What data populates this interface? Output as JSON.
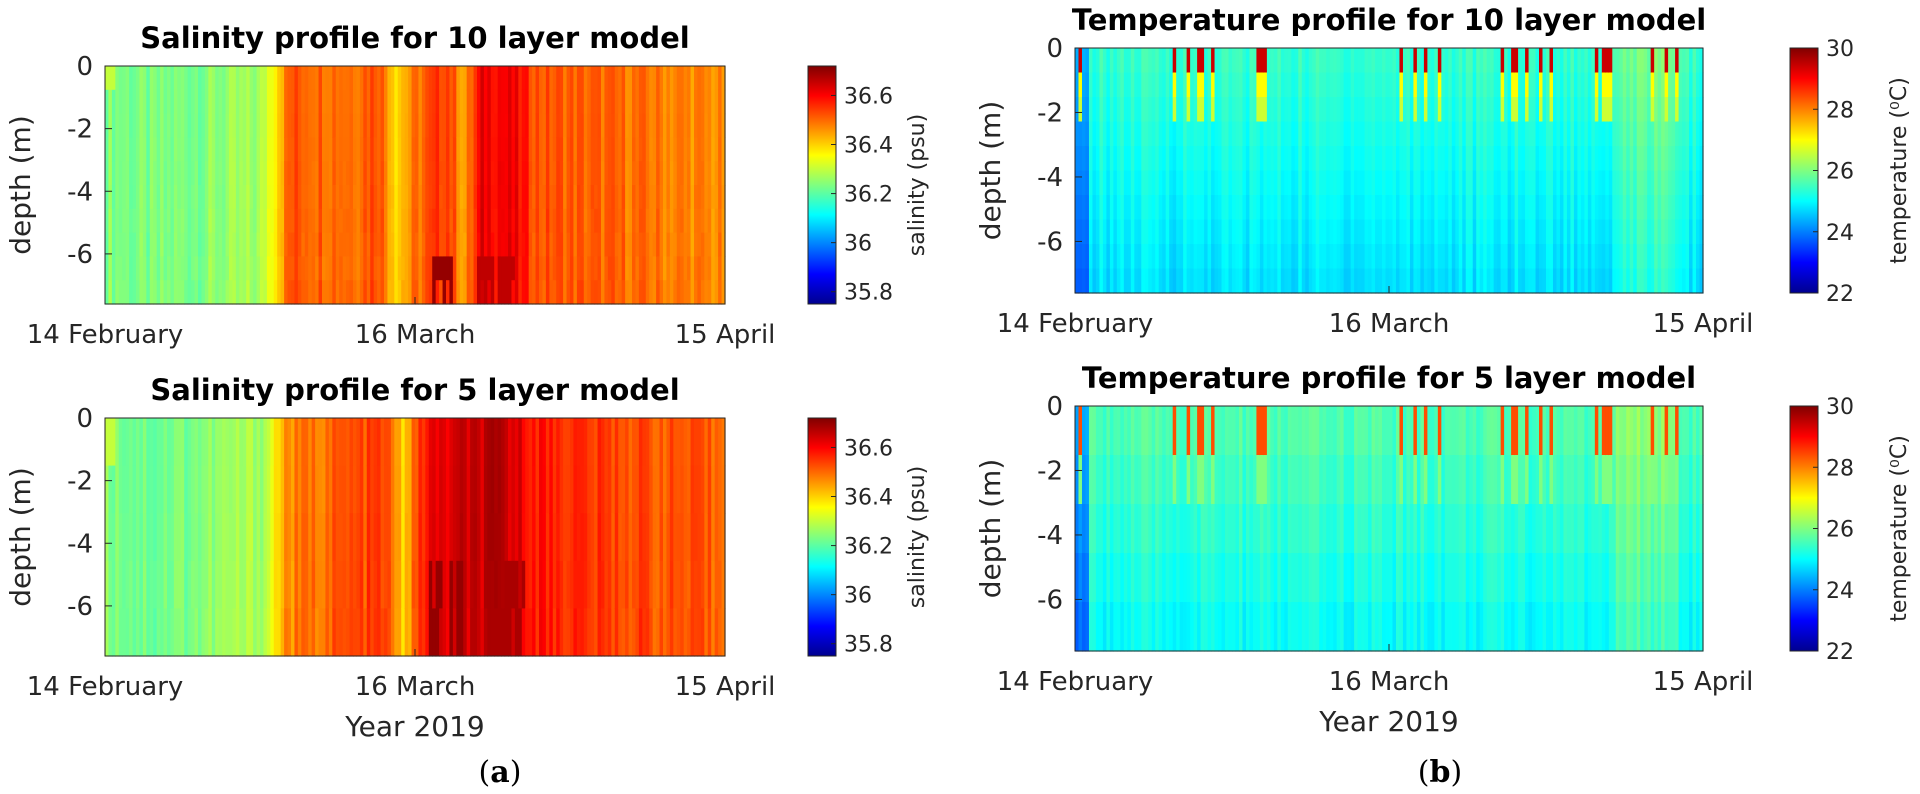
{
  "figure": {
    "year_label": "Year 2019"
  },
  "panel_labels": {
    "a": "a",
    "b": "b"
  },
  "colors": {
    "axis": "#262626",
    "title": "#000000"
  },
  "chart_data": [
    {
      "type": "heatmap",
      "id": "sal10",
      "title": "Salinity profile for 10 layer model",
      "xlabel": "",
      "ylabel": "depth (m)",
      "x_ticks": [
        "14 February",
        "16 March",
        "15 April"
      ],
      "y_ticks": [
        "0",
        "-2",
        "-4",
        "-6"
      ],
      "ylim": [
        -7.6,
        0
      ],
      "layers": 10,
      "colorbar": {
        "label": "salinity (psu)",
        "range": [
          35.75,
          36.72
        ],
        "ticks": [
          "36.6",
          "36.4",
          "36.2",
          "36",
          "35.8"
        ],
        "tick_values": [
          36.6,
          36.4,
          36.2,
          36.0,
          35.8
        ]
      },
      "surface_profile": [
        {
          "x": 0.0,
          "v": 36.24
        },
        {
          "x": 0.08,
          "v": 36.22
        },
        {
          "x": 0.16,
          "v": 36.24
        },
        {
          "x": 0.25,
          "v": 36.26
        },
        {
          "x": 0.28,
          "v": 36.42
        },
        {
          "x": 0.3,
          "v": 36.52
        },
        {
          "x": 0.4,
          "v": 36.5
        },
        {
          "x": 0.44,
          "v": 36.54
        },
        {
          "x": 0.47,
          "v": 36.4
        },
        {
          "x": 0.5,
          "v": 36.48
        },
        {
          "x": 0.55,
          "v": 36.56
        },
        {
          "x": 0.58,
          "v": 36.44
        },
        {
          "x": 0.61,
          "v": 36.62
        },
        {
          "x": 0.66,
          "v": 36.6
        },
        {
          "x": 0.7,
          "v": 36.52
        },
        {
          "x": 0.8,
          "v": 36.5
        },
        {
          "x": 0.9,
          "v": 36.48
        },
        {
          "x": 1.0,
          "v": 36.46
        }
      ],
      "deep_anomaly": [
        {
          "x0": 0.53,
          "x1": 0.56,
          "v": 36.7
        },
        {
          "x0": 0.6,
          "x1": 0.66,
          "v": 36.66
        }
      ]
    },
    {
      "type": "heatmap",
      "id": "sal5",
      "title": "Salinity profile for 5 layer model",
      "xlabel": "Year 2019",
      "ylabel": "depth (m)",
      "x_ticks": [
        "14 February",
        "16 March",
        "15 April"
      ],
      "y_ticks": [
        "0",
        "-2",
        "-4",
        "-6"
      ],
      "ylim": [
        -7.6,
        0
      ],
      "layers": 5,
      "colorbar": {
        "label": "salinity (psu)",
        "range": [
          35.75,
          36.72
        ],
        "ticks": [
          "36.6",
          "36.4",
          "36.2",
          "36",
          "35.8"
        ],
        "tick_values": [
          36.6,
          36.4,
          36.2,
          36.0,
          35.8
        ]
      },
      "surface_profile": [
        {
          "x": 0.0,
          "v": 36.24
        },
        {
          "x": 0.08,
          "v": 36.22
        },
        {
          "x": 0.16,
          "v": 36.24
        },
        {
          "x": 0.26,
          "v": 36.28
        },
        {
          "x": 0.29,
          "v": 36.46
        },
        {
          "x": 0.36,
          "v": 36.5
        },
        {
          "x": 0.45,
          "v": 36.54
        },
        {
          "x": 0.48,
          "v": 36.4
        },
        {
          "x": 0.52,
          "v": 36.6
        },
        {
          "x": 0.58,
          "v": 36.64
        },
        {
          "x": 0.64,
          "v": 36.66
        },
        {
          "x": 0.7,
          "v": 36.58
        },
        {
          "x": 0.8,
          "v": 36.54
        },
        {
          "x": 0.9,
          "v": 36.52
        },
        {
          "x": 1.0,
          "v": 36.5
        }
      ],
      "deep_anomaly": [
        {
          "x0": 0.52,
          "x1": 0.58,
          "v": 36.7
        },
        {
          "x0": 0.62,
          "x1": 0.68,
          "v": 36.68
        }
      ]
    },
    {
      "type": "heatmap",
      "id": "temp10",
      "title": "Temperature profile for 10 layer model",
      "xlabel": "",
      "ylabel": "depth (m)",
      "x_ticks": [
        "14 February",
        "16 March",
        "15 April"
      ],
      "y_ticks": [
        "0",
        "-2",
        "-4",
        "-6"
      ],
      "ylim": [
        -7.6,
        0
      ],
      "layers": 10,
      "colorbar": {
        "label": "temperature (⁰C)",
        "range": [
          22,
          30
        ],
        "ticks": [
          "30",
          "28",
          "26",
          "24",
          "22"
        ],
        "tick_values": [
          30,
          28,
          26,
          24,
          22
        ]
      },
      "base_value": 25.4,
      "spikes": [
        0.01,
        0.16,
        0.18,
        0.2,
        0.22,
        0.29,
        0.3,
        0.52,
        0.54,
        0.56,
        0.58,
        0.68,
        0.7,
        0.72,
        0.74,
        0.76,
        0.83,
        0.84,
        0.85,
        0.92,
        0.94,
        0.96
      ],
      "spike_value": 29.4
    },
    {
      "type": "heatmap",
      "id": "temp5",
      "title": "Temperature profile for 5 layer model",
      "xlabel": "Year 2019",
      "ylabel": "depth (m)",
      "x_ticks": [
        "14 February",
        "16 March",
        "15 April"
      ],
      "y_ticks": [
        "0",
        "-2",
        "-4",
        "-6"
      ],
      "ylim": [
        -7.6,
        0
      ],
      "layers": 5,
      "colorbar": {
        "label": "temperature (⁰C)",
        "range": [
          22,
          30
        ],
        "ticks": [
          "30",
          "28",
          "26",
          "24",
          "22"
        ],
        "tick_values": [
          30,
          28,
          26,
          24,
          22
        ]
      },
      "base_value": 25.6,
      "spikes": [
        0.01,
        0.16,
        0.18,
        0.2,
        0.22,
        0.29,
        0.3,
        0.52,
        0.54,
        0.56,
        0.58,
        0.68,
        0.7,
        0.72,
        0.74,
        0.76,
        0.83,
        0.84,
        0.85,
        0.92,
        0.94,
        0.96
      ],
      "spike_value": 28.4
    }
  ]
}
